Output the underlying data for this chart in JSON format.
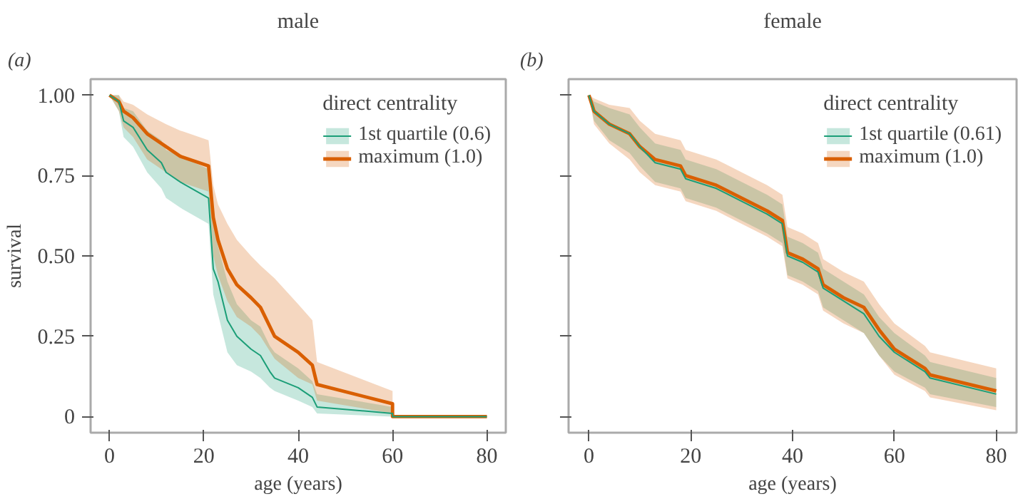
{
  "chart_data": [
    {
      "type": "line",
      "title": "male",
      "annotations": [
        "(a)"
      ],
      "xlabel": "age (years)",
      "ylabel": "survival",
      "legend_title": "direct centrality",
      "legend": "top right",
      "grid": false,
      "xlim": [
        -4,
        84
      ],
      "ylim": [
        -0.05,
        1.05
      ],
      "xticks": [
        0,
        20,
        40,
        60,
        80
      ],
      "yticks": [
        {
          "value": 0,
          "label": "0"
        },
        {
          "value": 0.25,
          "label": "0.25"
        },
        {
          "value": 0.5,
          "label": "0.50"
        },
        {
          "value": 0.75,
          "label": "0.75"
        },
        {
          "value": 1,
          "label": "1.00"
        }
      ],
      "series": [
        {
          "name": "1st quartile (0.6)",
          "color": "#1b9e77",
          "x": [
            0,
            2,
            3,
            5,
            8,
            11,
            12,
            15,
            21,
            22,
            23,
            25,
            27,
            30,
            32,
            34,
            35,
            40,
            43,
            44,
            60,
            60,
            80
          ],
          "values": [
            1,
            0.98,
            0.92,
            0.9,
            0.83,
            0.79,
            0.76,
            0.73,
            0.68,
            0.46,
            0.42,
            0.3,
            0.25,
            0.21,
            0.19,
            0.14,
            0.12,
            0.09,
            0.06,
            0.03,
            0.01,
            0,
            0
          ],
          "lower": [
            1,
            0.95,
            0.87,
            0.84,
            0.76,
            0.71,
            0.68,
            0.65,
            0.6,
            0.38,
            0.32,
            0.2,
            0.16,
            0.14,
            0.12,
            0.09,
            0.08,
            0.05,
            0.03,
            0.01,
            0,
            null,
            null
          ],
          "upper": [
            1,
            1,
            0.96,
            0.95,
            0.89,
            0.86,
            0.83,
            0.81,
            0.77,
            0.6,
            0.53,
            0.42,
            0.35,
            0.3,
            0.28,
            0.22,
            0.2,
            0.15,
            0.11,
            0.07,
            0.03,
            null,
            null
          ]
        },
        {
          "name": "maximum (1.0)",
          "color": "#d95f02",
          "x": [
            0,
            2,
            3,
            5,
            8,
            12,
            15,
            21,
            22,
            23,
            25,
            27,
            30,
            32,
            35,
            40,
            43,
            44,
            60,
            60,
            80
          ],
          "values": [
            1,
            0.98,
            0.95,
            0.93,
            0.88,
            0.84,
            0.81,
            0.78,
            0.62,
            0.55,
            0.46,
            0.41,
            0.37,
            0.34,
            0.25,
            0.2,
            0.16,
            0.1,
            0.04,
            0,
            0
          ],
          "lower": [
            1,
            0.95,
            0.9,
            0.87,
            0.8,
            0.76,
            0.73,
            0.7,
            0.5,
            0.44,
            0.36,
            0.31,
            0.28,
            0.25,
            0.18,
            0.12,
            0.1,
            0.05,
            0.01,
            null,
            null
          ],
          "upper": [
            1,
            1,
            0.98,
            0.97,
            0.94,
            0.91,
            0.89,
            0.86,
            0.72,
            0.66,
            0.6,
            0.55,
            0.5,
            0.47,
            0.43,
            0.35,
            0.3,
            0.17,
            0.08,
            null,
            null
          ]
        }
      ]
    },
    {
      "type": "line",
      "title": "female",
      "annotations": [
        "(b)"
      ],
      "xlabel": "age (years)",
      "legend_title": "direct centrality",
      "legend": "top right",
      "grid": false,
      "tick_labels": "x",
      "xlim": [
        -4,
        84
      ],
      "ylim": [
        -0.05,
        1.05
      ],
      "xticks": [
        0,
        20,
        40,
        60,
        80
      ],
      "yticks": [
        {
          "value": 0,
          "label": null
        },
        {
          "value": 0.25,
          "label": null
        },
        {
          "value": 0.5,
          "label": null
        },
        {
          "value": 0.75,
          "label": null
        },
        {
          "value": 1,
          "label": null
        }
      ],
      "series": [
        {
          "name": "1st quartile (0.61)",
          "color": "#1b9e77",
          "x": [
            0,
            1,
            4,
            8,
            10,
            13,
            18,
            19,
            25,
            30,
            35,
            38,
            39,
            42,
            45,
            46,
            50,
            54,
            57,
            60,
            66,
            67,
            80
          ],
          "values": [
            1,
            0.95,
            0.91,
            0.88,
            0.84,
            0.79,
            0.77,
            0.74,
            0.71,
            0.67,
            0.63,
            0.6,
            0.5,
            0.48,
            0.45,
            0.4,
            0.36,
            0.32,
            0.25,
            0.2,
            0.14,
            0.12,
            0.07
          ],
          "lower": [
            1,
            0.92,
            0.86,
            0.82,
            0.78,
            0.73,
            0.71,
            0.68,
            0.65,
            0.61,
            0.57,
            0.54,
            0.44,
            0.42,
            0.39,
            0.34,
            0.3,
            0.26,
            0.19,
            0.14,
            0.09,
            0.07,
            0.03
          ],
          "upper": [
            1,
            0.98,
            0.96,
            0.94,
            0.9,
            0.85,
            0.83,
            0.8,
            0.77,
            0.73,
            0.69,
            0.66,
            0.56,
            0.54,
            0.51,
            0.46,
            0.42,
            0.38,
            0.31,
            0.26,
            0.19,
            0.17,
            0.12
          ]
        },
        {
          "name": "maximum (1.0)",
          "color": "#d95f02",
          "x": [
            0,
            1,
            4,
            8,
            10,
            13,
            18,
            19,
            25,
            30,
            35,
            38,
            39,
            42,
            45,
            46,
            50,
            54,
            57,
            60,
            66,
            67,
            80
          ],
          "values": [
            1,
            0.95,
            0.91,
            0.88,
            0.84,
            0.8,
            0.78,
            0.75,
            0.72,
            0.68,
            0.64,
            0.61,
            0.51,
            0.49,
            0.46,
            0.41,
            0.37,
            0.34,
            0.27,
            0.21,
            0.15,
            0.13,
            0.08
          ],
          "lower": [
            1,
            0.91,
            0.85,
            0.8,
            0.76,
            0.72,
            0.7,
            0.67,
            0.64,
            0.6,
            0.56,
            0.53,
            0.43,
            0.41,
            0.38,
            0.33,
            0.29,
            0.26,
            0.19,
            0.13,
            0.08,
            0.06,
            0.02
          ],
          "upper": [
            1,
            0.99,
            0.97,
            0.96,
            0.92,
            0.88,
            0.86,
            0.83,
            0.8,
            0.76,
            0.72,
            0.69,
            0.59,
            0.57,
            0.54,
            0.49,
            0.45,
            0.42,
            0.35,
            0.29,
            0.22,
            0.2,
            0.15
          ]
        }
      ]
    }
  ]
}
